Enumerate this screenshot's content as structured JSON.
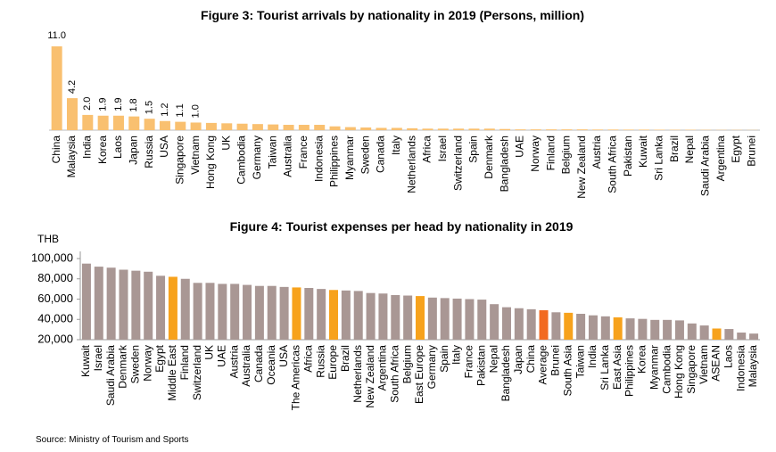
{
  "chart_data": [
    {
      "type": "bar",
      "title": "Figure 3: Tourist arrivals by nationality in 2019 (Persons, million)",
      "categories": [
        "China",
        "Malaysia",
        "India",
        "Korea",
        "Laos",
        "Japan",
        "Russia",
        "USA",
        "Singapore",
        "Vietnam",
        "Hong Kong",
        "UK",
        "Cambodia",
        "Germany",
        "Taiwan",
        "Australia",
        "France",
        "Indonesia",
        "Philippines",
        "Myanmar",
        "Sweden",
        "Canada",
        "Italy",
        "Netherlands",
        "Africa",
        "Israel",
        "Switzerland",
        "Spain",
        "Denmark",
        "Bangladesh",
        "UAE",
        "Norway",
        "Finland",
        "Belgium",
        "New Zealand",
        "Austria",
        "South Africa",
        "Pakistan",
        "Kuwait",
        "Sri Lanka",
        "Brazil",
        "Nepal",
        "Saudi Arabia",
        "Argentina",
        "Egypt",
        "Brunei"
      ],
      "values": [
        11.0,
        4.2,
        2.0,
        1.9,
        1.9,
        1.8,
        1.5,
        1.2,
        1.1,
        1.0,
        0.95,
        0.9,
        0.85,
        0.8,
        0.75,
        0.7,
        0.7,
        0.7,
        0.5,
        0.4,
        0.35,
        0.3,
        0.3,
        0.25,
        0.2,
        0.2,
        0.2,
        0.2,
        0.2,
        0.15,
        0.1,
        0.1,
        0.1,
        0.1,
        0.1,
        0.08,
        0.08,
        0.07,
        0.07,
        0.06,
        0.05,
        0.05,
        0.04,
        0.03,
        0.03,
        0.02
      ],
      "value_labels": [
        "11.0",
        "4.2",
        "2.0",
        "1.9",
        "1.9",
        "1.8",
        "1.5",
        "1.2",
        "1.1",
        "1.0",
        null,
        null,
        null,
        null,
        null,
        null,
        null,
        null,
        null,
        null,
        null,
        null,
        null,
        null,
        null,
        null,
        null,
        null,
        null,
        null,
        null,
        null,
        null,
        null,
        null,
        null,
        null,
        null,
        null,
        null,
        null,
        null,
        null,
        null,
        null,
        null
      ],
      "color": "#f9c070"
    },
    {
      "type": "bar",
      "title": "Figure 4: Tourist expenses per head by nationality in 2019",
      "ylabel": "THB",
      "categories": [
        "Kuwait",
        "Israel",
        "Saudi Arabia",
        "Denmark",
        "Sweden",
        "Norway",
        "Egypt",
        "Middle East",
        "Finland",
        "Switzerland",
        "UK",
        "UAE",
        "Austria",
        "Australia",
        "Canada",
        "Oceania",
        "USA",
        "The Americas",
        "Africa",
        "Russia",
        "Europe",
        "Brazil",
        "Netherlands",
        "New Zealand",
        "Argentina",
        "South Africa",
        "Belgium",
        "East Europe",
        "Germany",
        "Spain",
        "Italy",
        "France",
        "Pakistan",
        "Nepal",
        "Bangladesh",
        "Japan",
        "China",
        "Average",
        "Brunei",
        "South Asia",
        "Taiwan",
        "India",
        "Sri Lanka",
        "East Asia",
        "Philippines",
        "Korea",
        "Myanmar",
        "Cambodia",
        "Hong Kong",
        "Singapore",
        "Vietnam",
        "ASEAN",
        "Laos",
        "Indonesia",
        "Malaysia"
      ],
      "values": [
        95000,
        92000,
        91000,
        89000,
        88000,
        87000,
        83000,
        82000,
        80000,
        76000,
        76000,
        75000,
        75000,
        74000,
        73000,
        73000,
        72000,
        71500,
        71000,
        70000,
        69000,
        68500,
        68000,
        66000,
        65500,
        64000,
        63500,
        63000,
        61500,
        61000,
        60500,
        60000,
        59500,
        55000,
        52000,
        51000,
        50000,
        49000,
        47000,
        46500,
        45500,
        44000,
        43000,
        42000,
        41000,
        40500,
        39500,
        39500,
        39000,
        36000,
        34000,
        31000,
        30500,
        27000,
        26000
      ],
      "colors": [
        "#a99794",
        "#a99794",
        "#a99794",
        "#a99794",
        "#a99794",
        "#a99794",
        "#a99794",
        "#f7a21c",
        "#a99794",
        "#a99794",
        "#a99794",
        "#a99794",
        "#a99794",
        "#a99794",
        "#a99794",
        "#a99794",
        "#a99794",
        "#f7a21c",
        "#a99794",
        "#a99794",
        "#f7a21c",
        "#a99794",
        "#a99794",
        "#a99794",
        "#a99794",
        "#a99794",
        "#a99794",
        "#f7a21c",
        "#a99794",
        "#a99794",
        "#a99794",
        "#a99794",
        "#a99794",
        "#a99794",
        "#a99794",
        "#a99794",
        "#a99794",
        "#f26a21",
        "#a99794",
        "#f7a21c",
        "#a99794",
        "#a99794",
        "#a99794",
        "#f7a21c",
        "#a99794",
        "#a99794",
        "#a99794",
        "#a99794",
        "#a99794",
        "#a99794",
        "#a99794",
        "#f7a21c",
        "#a99794",
        "#a99794",
        "#a99794"
      ],
      "ylim": [
        20000,
        100000
      ],
      "yticks": [
        {
          "value": 20000,
          "label": "20,000"
        },
        {
          "value": 40000,
          "label": "40,000"
        },
        {
          "value": 60000,
          "label": "60,000"
        },
        {
          "value": 80000,
          "label": "80,000"
        },
        {
          "value": 100000,
          "label": "100,000"
        }
      ]
    }
  ],
  "source": "Source: Ministry of Tourism and Sports"
}
